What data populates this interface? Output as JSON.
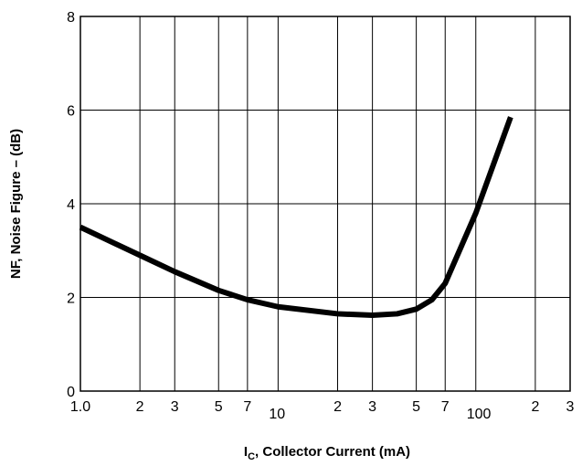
{
  "chart_data": {
    "type": "line",
    "x_label": [
      "I",
      "C",
      ", Collector Current (mA)"
    ],
    "y_label": "NF, Noise Figure – (dB)",
    "x": [
      1,
      2,
      3,
      5,
      7,
      10,
      20,
      30,
      40,
      50,
      60,
      70,
      100,
      150
    ],
    "series": [
      {
        "name": "NF",
        "color": "#000000",
        "values": [
          3.5,
          2.9,
          2.55,
          2.15,
          1.95,
          1.8,
          1.65,
          1.62,
          1.65,
          1.75,
          1.95,
          2.3,
          3.8,
          5.85
        ]
      }
    ],
    "xscale": "log",
    "xlim": [
      1,
      300
    ],
    "ylim": [
      0,
      8
    ],
    "xticks": [
      {
        "value": 1,
        "label": "1.0"
      },
      2,
      3,
      5,
      7,
      10,
      {
        "value": 20,
        "label": "2"
      },
      {
        "value": 30,
        "label": "3"
      },
      {
        "value": 50,
        "label": "5"
      },
      {
        "value": 70,
        "label": "7"
      },
      100,
      {
        "value": 200,
        "label": "2"
      },
      {
        "value": 300,
        "label": "3"
      }
    ],
    "yticks": [
      0,
      2,
      4,
      6,
      8
    ],
    "grid": true
  }
}
